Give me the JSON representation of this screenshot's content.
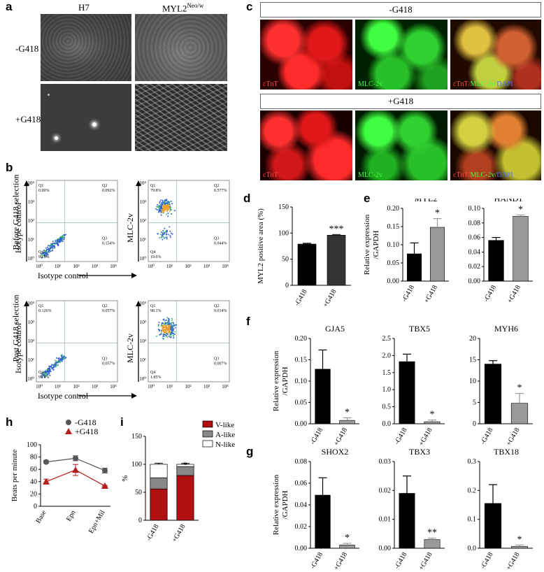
{
  "panels": {
    "a": "a",
    "b": "b",
    "c": "c",
    "d": "d",
    "e": "e",
    "f": "f",
    "g": "g",
    "h": "h",
    "i": "i"
  },
  "panel_a": {
    "col_h7": "H7",
    "col_myl2": "MYL2",
    "col_myl2_sup": "Neo/w",
    "row_minus": "-G418",
    "row_plus": "+G418"
  },
  "panel_b": {
    "row_before": "Before G418 selection",
    "row_post": "Post  G418 selection",
    "x_label": "Isotype control",
    "y_label_iso": "Isotype control",
    "y_label_mlc": "MLC-2v",
    "ticks_y": [
      "10⁴",
      "10³",
      "10²",
      "10¹",
      "10⁰"
    ],
    "ticks_x": [
      "10⁰",
      "10¹",
      "10²",
      "10³",
      "10⁴"
    ],
    "plots": [
      {
        "q1": "Q1",
        "q1v": "0.00%",
        "q2": "Q2",
        "q2v": "0.092%",
        "q3": "Q3",
        "q3v": "0.154%",
        "q4": "Q4",
        "q4v": "99.8%"
      },
      {
        "q1": "Q1",
        "q1v": "79.8%",
        "q2": "Q2",
        "q2v": "0.577%",
        "q3": "Q3",
        "q3v": "0.044%",
        "q4": "Q4",
        "q4v": "19.6%"
      },
      {
        "q1": "Q1",
        "q1v": "0.126%",
        "q2": "Q2",
        "q2v": "0.057%",
        "q3": "Q3",
        "q3v": "0.057%",
        "q4": "Q4",
        "q4v": "99.8%"
      },
      {
        "q1": "Q1",
        "q1v": "98.1%",
        "q2": "Q2",
        "q2v": "0.014%",
        "q3": "Q3",
        "q3v": "0.007%",
        "q4": "Q4",
        "q4v": "1.85%"
      }
    ]
  },
  "panel_c": {
    "minus": "-G418",
    "plus": "+G418",
    "ctnt": "cTnT",
    "mlc": "MLC-2v",
    "merge_a": "cTnT/",
    "merge_b": "MLC-2v/",
    "merge_c": "DAPI",
    "colors": {
      "red": "#ff2020",
      "green": "#30e030",
      "blue": "#4060ff"
    }
  },
  "chart_data": [
    {
      "id": "d",
      "type": "bar",
      "categories": [
        "-G418",
        "+G418"
      ],
      "values": [
        79,
        96
      ],
      "errors": [
        1.5,
        1.2
      ],
      "ylabel": "MYL2 positive area (%)",
      "ylim": [
        0,
        150
      ],
      "yticks": [
        "0",
        "50",
        "100",
        "150"
      ],
      "annotations": [
        "",
        "***"
      ],
      "colors": [
        "#000000",
        "#333333"
      ]
    },
    {
      "id": "e1",
      "type": "bar",
      "title": "MYL2",
      "categories": [
        "-G418",
        "+G418"
      ],
      "values": [
        0.075,
        0.148
      ],
      "errors": [
        0.03,
        0.024
      ],
      "ylabel": "Relative expression /GAPDH",
      "ylim": [
        0,
        0.2
      ],
      "yticks": [
        "0.00",
        "0.05",
        "0.10",
        "0.15",
        "0.20"
      ],
      "annotations": [
        "",
        "*"
      ],
      "colors": [
        "#000000",
        "#999999"
      ]
    },
    {
      "id": "e2",
      "type": "bar",
      "title": "HAND1",
      "categories": [
        "-G418",
        "+G418"
      ],
      "values": [
        0.056,
        0.089
      ],
      "errors": [
        0.004,
        0.002
      ],
      "ylim": [
        0,
        0.1
      ],
      "yticks": [
        "0.00",
        "0.02",
        "0.04",
        "0.06",
        "0.08",
        "0.10"
      ],
      "annotations": [
        "",
        "*"
      ],
      "colors": [
        "#000000",
        "#999999"
      ]
    },
    {
      "id": "f1",
      "type": "bar",
      "title": "GJA5",
      "categories": [
        "-G418",
        "+G418"
      ],
      "values": [
        0.128,
        0.008
      ],
      "errors": [
        0.045,
        0.006
      ],
      "ylabel": "Relative expression /GAPDH",
      "ylim": [
        0,
        0.2
      ],
      "yticks": [
        "0.00",
        "0.05",
        "0.10",
        "0.15",
        "0.20"
      ],
      "annotations": [
        "",
        "*"
      ],
      "colors": [
        "#000000",
        "#999999"
      ]
    },
    {
      "id": "f2",
      "type": "bar",
      "title": "TBX5",
      "categories": [
        "-G418",
        "+G418"
      ],
      "values": [
        1.82,
        0.06
      ],
      "errors": [
        0.22,
        0.05
      ],
      "ylim": [
        0,
        2.5
      ],
      "yticks": [
        "0.0",
        "0.5",
        "1.0",
        "1.5",
        "2.0",
        "2.5"
      ],
      "annotations": [
        "",
        "*"
      ],
      "colors": [
        "#000000",
        "#999999"
      ]
    },
    {
      "id": "f3",
      "type": "bar",
      "title": "MYH6",
      "categories": [
        "-G418",
        "+G418"
      ],
      "values": [
        14,
        4.8
      ],
      "errors": [
        0.8,
        2.3
      ],
      "ylim": [
        0,
        20
      ],
      "yticks": [
        "0",
        "5",
        "10",
        "15",
        "20"
      ],
      "annotations": [
        "",
        "*"
      ],
      "colors": [
        "#000000",
        "#999999"
      ]
    },
    {
      "id": "g1",
      "type": "bar",
      "title": "SHOX2",
      "categories": [
        "-G418",
        "+G418"
      ],
      "values": [
        0.049,
        0.003
      ],
      "errors": [
        0.016,
        0.0015
      ],
      "ylabel": "Relative expression /GAPDH",
      "ylim": [
        0,
        0.08
      ],
      "yticks": [
        "0.00",
        "0.02",
        "0.04",
        "0.06",
        "0.08"
      ],
      "annotations": [
        "",
        "*"
      ],
      "colors": [
        "#000000",
        "#999999"
      ]
    },
    {
      "id": "g2",
      "type": "bar",
      "title": "TBX3",
      "categories": [
        "-G418",
        "+G418"
      ],
      "values": [
        0.019,
        0.003
      ],
      "errors": [
        0.006,
        0.0005
      ],
      "ylim": [
        0,
        0.03
      ],
      "yticks": [
        "0.00",
        "0.01",
        "0.02",
        "0.03"
      ],
      "annotations": [
        "",
        "**"
      ],
      "colors": [
        "#000000",
        "#999999"
      ]
    },
    {
      "id": "g3",
      "type": "bar",
      "title": "TBX18",
      "categories": [
        "-G418",
        "+G418"
      ],
      "values": [
        0.155,
        0.006
      ],
      "errors": [
        0.065,
        0.005
      ],
      "ylim": [
        0,
        0.3
      ],
      "yticks": [
        "0.0",
        "0.1",
        "0.2",
        "0.3"
      ],
      "annotations": [
        "",
        "*"
      ],
      "colors": [
        "#000000",
        "#999999"
      ]
    },
    {
      "id": "h",
      "type": "line",
      "categories": [
        "Base",
        "Epn",
        "Epn+Mil"
      ],
      "series": [
        {
          "name": "-G418",
          "values": [
            72,
            78,
            58
          ],
          "errors": [
            2,
            4,
            4
          ],
          "color": "#555555",
          "marker": "circle"
        },
        {
          "name": "+G418",
          "values": [
            40,
            59,
            33
          ],
          "errors": [
            4,
            9,
            1
          ],
          "color": "#b41e1e",
          "marker": "triangle"
        }
      ],
      "ylabel": "Beats per minute",
      "ylim": [
        0,
        100
      ],
      "yticks": [
        "0",
        "20",
        "40",
        "60",
        "80",
        "100"
      ]
    },
    {
      "id": "i",
      "type": "bar",
      "stacked": true,
      "categories": [
        "-G418",
        "+G418"
      ],
      "series": [
        {
          "name": "V-like",
          "values": [
            56,
            80
          ],
          "color": "#b01010"
        },
        {
          "name": "A-like",
          "values": [
            20,
            16
          ],
          "color": "#888888"
        },
        {
          "name": "N-like",
          "values": [
            24,
            4
          ],
          "color": "#ffffff"
        }
      ],
      "errors": [
        [
          1.5,
          1.5
        ],
        [
          2,
          2
        ],
        [
          2,
          1.5
        ]
      ],
      "ylabel": "%",
      "ylim": [
        0,
        150
      ],
      "yticks": [
        "0",
        "50",
        "100",
        "150"
      ],
      "annotations": [
        "",
        "*"
      ]
    }
  ]
}
